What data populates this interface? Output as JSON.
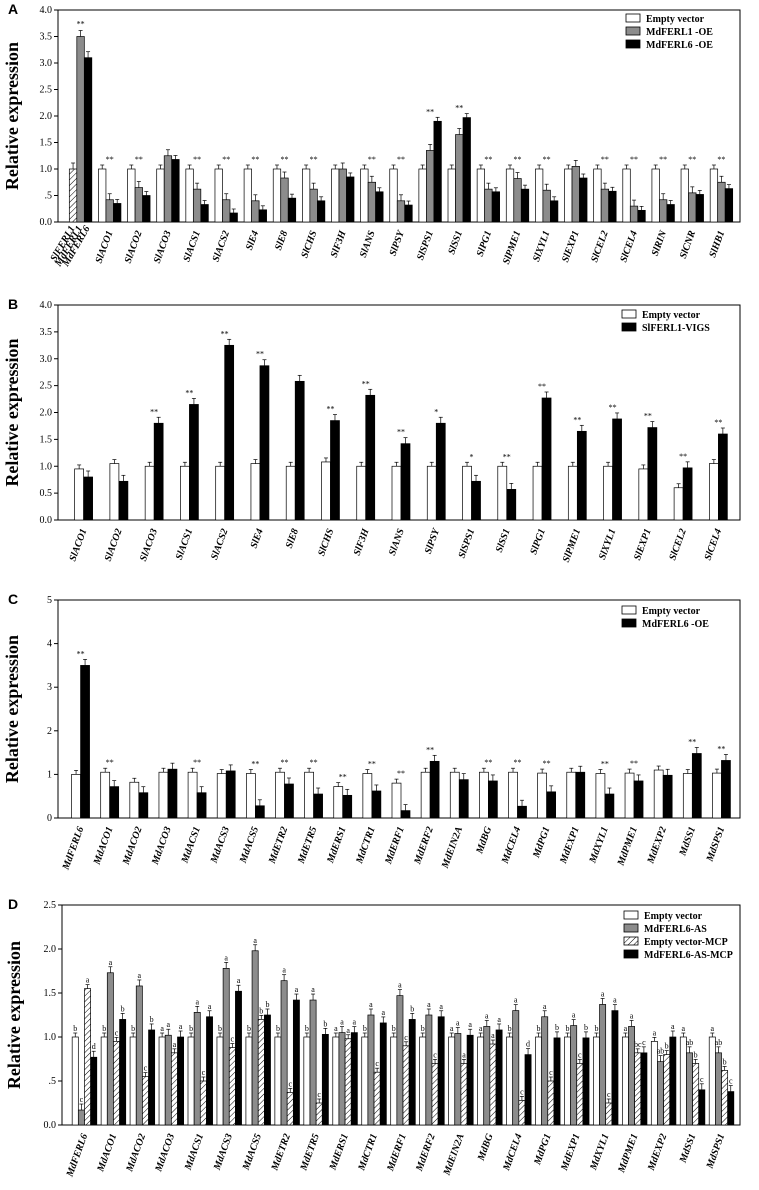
{
  "chart_data": [
    {
      "panel": "A",
      "type": "bar",
      "ylabel": "Relative expression",
      "ylim": [
        0,
        4.0
      ],
      "yticks": [
        "0.0",
        ".5",
        "1.0",
        "1.5",
        "2.0",
        "2.5",
        "3.0",
        "3.5",
        "4.0"
      ],
      "legend": [
        {
          "label": "Empty vector",
          "style": "white"
        },
        {
          "label": "MdFERL1 -OE",
          "style": "gray"
        },
        {
          "label": "MdFERL6 -OE",
          "style": "black"
        }
      ],
      "first_group_labels": [
        "SlFERL1",
        "MdFERL1",
        "MdFERL6"
      ],
      "first_group_values": [
        1.0,
        3.5,
        3.1
      ],
      "first_group_sig": "**",
      "categories": [
        "SlACO1",
        "SlACO2",
        "SlACO3",
        "SlACS1",
        "SlACS2",
        "SlE4",
        "SlE8",
        "SlCHS",
        "SlF3H",
        "SlANS",
        "SlPSY",
        "SlSPS1",
        "SlSS1",
        "SlPG1",
        "SlPME1",
        "SlXYL1",
        "SlEXP1",
        "SlCEL2",
        "SlCEL4",
        "SlRIN",
        "SlCNR",
        "SlHB1"
      ],
      "series": [
        {
          "name": "Empty vector",
          "values": [
            1.0,
            1.0,
            1.0,
            1.0,
            1.0,
            1.0,
            1.0,
            1.0,
            1.0,
            1.0,
            1.0,
            1.0,
            1.0,
            1.0,
            1.0,
            1.0,
            1.0,
            1.0,
            1.0,
            1.0,
            1.0,
            1.0
          ]
        },
        {
          "name": "MdFERL1 -OE",
          "values": [
            0.42,
            0.65,
            1.25,
            0.62,
            0.42,
            0.4,
            0.83,
            0.62,
            1.0,
            0.75,
            0.4,
            1.35,
            1.65,
            0.62,
            0.82,
            0.6,
            1.05,
            0.62,
            0.3,
            0.42,
            0.55,
            0.75
          ]
        },
        {
          "name": "MdFERL6 -OE",
          "values": [
            0.35,
            0.5,
            1.18,
            0.33,
            0.17,
            0.23,
            0.45,
            0.4,
            0.85,
            0.57,
            0.32,
            1.9,
            1.97,
            0.57,
            0.62,
            0.4,
            0.83,
            0.58,
            0.22,
            0.33,
            0.52,
            0.63
          ]
        }
      ],
      "sig": [
        "**",
        "**",
        "",
        "**",
        "**",
        "**",
        "**",
        "**",
        "",
        "**",
        "**",
        "**",
        "**",
        "**",
        "**",
        "**",
        "",
        "**",
        "**",
        "**",
        "**",
        "**"
      ]
    },
    {
      "panel": "B",
      "type": "bar",
      "ylabel": "Relative expression",
      "ylim": [
        0,
        4.0
      ],
      "yticks": [
        "0.0",
        "0.5",
        "1.0",
        "1.5",
        "2.0",
        "2.5",
        "3.0",
        "3.5",
        "4.0"
      ],
      "legend": [
        {
          "label": "Empty vector",
          "style": "white"
        },
        {
          "label": "SlFERL1-VIGS",
          "style": "black"
        }
      ],
      "categories": [
        "SlACO1",
        "SlACO2",
        "SlACO3",
        "SlACS1",
        "SlACS2",
        "SlE4",
        "SlE8",
        "SlCHS",
        "SlF3H",
        "SlANS",
        "SlPSY",
        "SlSPS1",
        "SlSS1",
        "SlPG1",
        "SlPME1",
        "SlXYL1",
        "SlEXP1",
        "SlCEL2",
        "SlCEL4"
      ],
      "series": [
        {
          "name": "Empty vector",
          "values": [
            0.95,
            1.05,
            1.0,
            1.0,
            1.0,
            1.05,
            1.0,
            1.08,
            1.0,
            1.0,
            1.0,
            1.0,
            1.0,
            1.0,
            1.0,
            1.0,
            0.95,
            0.6,
            1.05
          ]
        },
        {
          "name": "SlFERL1-VIGS",
          "values": [
            0.8,
            0.72,
            1.8,
            2.15,
            3.25,
            2.87,
            2.58,
            1.85,
            2.32,
            1.42,
            1.8,
            0.72,
            0.57,
            2.27,
            1.65,
            1.88,
            1.72,
            0.97,
            1.6
          ]
        }
      ],
      "sig": [
        "",
        "",
        "**",
        "**",
        "**",
        "**",
        "",
        "**",
        "**",
        "**",
        "*",
        "*",
        "**",
        "**",
        "**",
        "**",
        "**",
        "**",
        "**"
      ]
    },
    {
      "panel": "C",
      "type": "bar",
      "ylabel": "Relative expression",
      "ylim": [
        0,
        5
      ],
      "yticks": [
        "0",
        "1",
        "2",
        "3",
        "4",
        "5"
      ],
      "legend": [
        {
          "label": "Empty vector",
          "style": "white"
        },
        {
          "label": "MdFERL6 -OE",
          "style": "black"
        }
      ],
      "categories": [
        "MdFERL6",
        "MdACO1",
        "MdACO2",
        "MdACO3",
        "MdACS1",
        "MdACS3",
        "MdACS5",
        "MdETR2",
        "MdETR5",
        "MdERS1",
        "MdCTR1",
        "MdERF1",
        "MdERF2",
        "MdEIN2A",
        "MdBG",
        "MdCEL4",
        "MdPG1",
        "MdEXP1",
        "MdXYL1",
        "MdPME1",
        "MdEXP2",
        "MdSS1",
        "MdSPS1"
      ],
      "series": [
        {
          "name": "Empty vector",
          "values": [
            1.0,
            1.05,
            0.82,
            1.05,
            1.05,
            1.02,
            1.02,
            1.05,
            1.05,
            0.72,
            1.02,
            0.8,
            1.05,
            1.05,
            1.05,
            1.05,
            1.03,
            1.05,
            1.02,
            1.03,
            1.1,
            1.02,
            1.03
          ]
        },
        {
          "name": "MdFERL6 -OE",
          "values": [
            3.5,
            0.72,
            0.58,
            1.12,
            0.58,
            1.08,
            0.28,
            0.78,
            0.55,
            0.52,
            0.62,
            0.17,
            1.3,
            0.88,
            0.85,
            0.27,
            0.6,
            1.05,
            0.55,
            0.85,
            0.98,
            1.48,
            1.32
          ]
        }
      ],
      "sig": [
        "**",
        "**",
        "",
        "",
        "**",
        "",
        "**",
        "**",
        "**",
        "**",
        "**",
        "**",
        "**",
        "",
        "**",
        "**",
        "**",
        "",
        "**",
        "**",
        "",
        "**",
        "**"
      ]
    },
    {
      "panel": "D",
      "type": "bar",
      "ylabel": "Relative expression",
      "ylim": [
        0,
        2.5
      ],
      "yticks": [
        "0.0",
        ".5",
        "1.0",
        "1.5",
        "2.0",
        "2.5"
      ],
      "legend": [
        {
          "label": "Empty vector",
          "style": "white"
        },
        {
          "label": "MdFERL6-AS",
          "style": "gray"
        },
        {
          "label": "Empty vector-MCP",
          "style": "hatch"
        },
        {
          "label": "MdFERL6-AS-MCP",
          "style": "black"
        }
      ],
      "categories": [
        "MdFERL6",
        "MdACO1",
        "MdACO2",
        "MdACO3",
        "MdACS1",
        "MdACS3",
        "MdACS5",
        "MdETR2",
        "MdETR5",
        "MdERS1",
        "MdCTR1",
        "MdERF1",
        "MdERF2",
        "MdEIN2A",
        "MdBG",
        "MdCEL4",
        "MdPG1",
        "MdEXP1",
        "MdXYL1",
        "MdPME1",
        "MdEXP2",
        "MdSS1",
        "MdSPS1"
      ],
      "series": [
        {
          "name": "Empty vector",
          "values": [
            1.0,
            1.0,
            1.0,
            1.0,
            1.0,
            1.0,
            1.0,
            1.0,
            1.0,
            1.0,
            1.0,
            1.0,
            1.0,
            1.0,
            1.0,
            1.0,
            1.0,
            1.0,
            1.0,
            1.0,
            0.95,
            1.0,
            1.0
          ]
        },
        {
          "name": "MdFERL6-AS",
          "values": [
            0.17,
            1.73,
            1.58,
            1.02,
            1.28,
            1.78,
            1.98,
            1.64,
            1.42,
            1.05,
            1.25,
            1.47,
            1.25,
            1.04,
            1.12,
            1.3,
            1.23,
            1.13,
            1.37,
            1.12,
            0.72,
            0.82,
            0.82
          ]
        },
        {
          "name": "Empty vector-MCP",
          "values": [
            1.55,
            0.95,
            0.55,
            0.82,
            0.5,
            0.88,
            1.2,
            0.37,
            0.25,
            0.98,
            0.6,
            0.9,
            0.7,
            0.7,
            0.92,
            0.28,
            0.5,
            0.7,
            0.25,
            0.82,
            0.8,
            0.7,
            0.62
          ]
        },
        {
          "name": "MdFERL6-AS-MCP",
          "values": [
            0.77,
            1.2,
            1.08,
            1.0,
            1.23,
            1.52,
            1.25,
            1.42,
            1.03,
            1.05,
            1.16,
            1.2,
            1.23,
            1.02,
            1.08,
            0.8,
            0.99,
            0.99,
            1.3,
            0.82,
            1.0,
            0.4,
            0.38
          ]
        }
      ],
      "letters": [
        [
          "b",
          "c",
          "a",
          "d"
        ],
        [
          "b",
          "a",
          "c",
          "b"
        ],
        [
          "b",
          "a",
          "c",
          "b"
        ],
        [
          "a",
          "a",
          "a",
          "a"
        ],
        [
          "b",
          "a",
          "c",
          "a"
        ],
        [
          "b",
          "a",
          "c",
          "a"
        ],
        [
          "b",
          "a",
          "b",
          "b"
        ],
        [
          "b",
          "a",
          "c",
          "a"
        ],
        [
          "b",
          "a",
          "c",
          "b"
        ],
        [
          "a",
          "a",
          "a",
          "a"
        ],
        [
          "b",
          "a",
          "c",
          "a"
        ],
        [
          "b",
          "a",
          "c",
          "b"
        ],
        [
          "b",
          "a",
          "c",
          "a"
        ],
        [
          "a",
          "a",
          "a",
          "a"
        ],
        [
          "a",
          "a",
          "a",
          "a"
        ],
        [
          "b",
          "a",
          "c",
          "d"
        ],
        [
          "b",
          "a",
          "c",
          "b"
        ],
        [
          "b",
          "a",
          "c",
          "b"
        ],
        [
          "b",
          "a",
          "c",
          "a"
        ],
        [
          "a",
          "a",
          "bc",
          "c"
        ],
        [
          "a",
          "ab",
          "b",
          "a"
        ],
        [
          "a",
          "ab",
          "b",
          "c"
        ],
        [
          "a",
          "ab",
          "b",
          "c"
        ]
      ]
    }
  ]
}
